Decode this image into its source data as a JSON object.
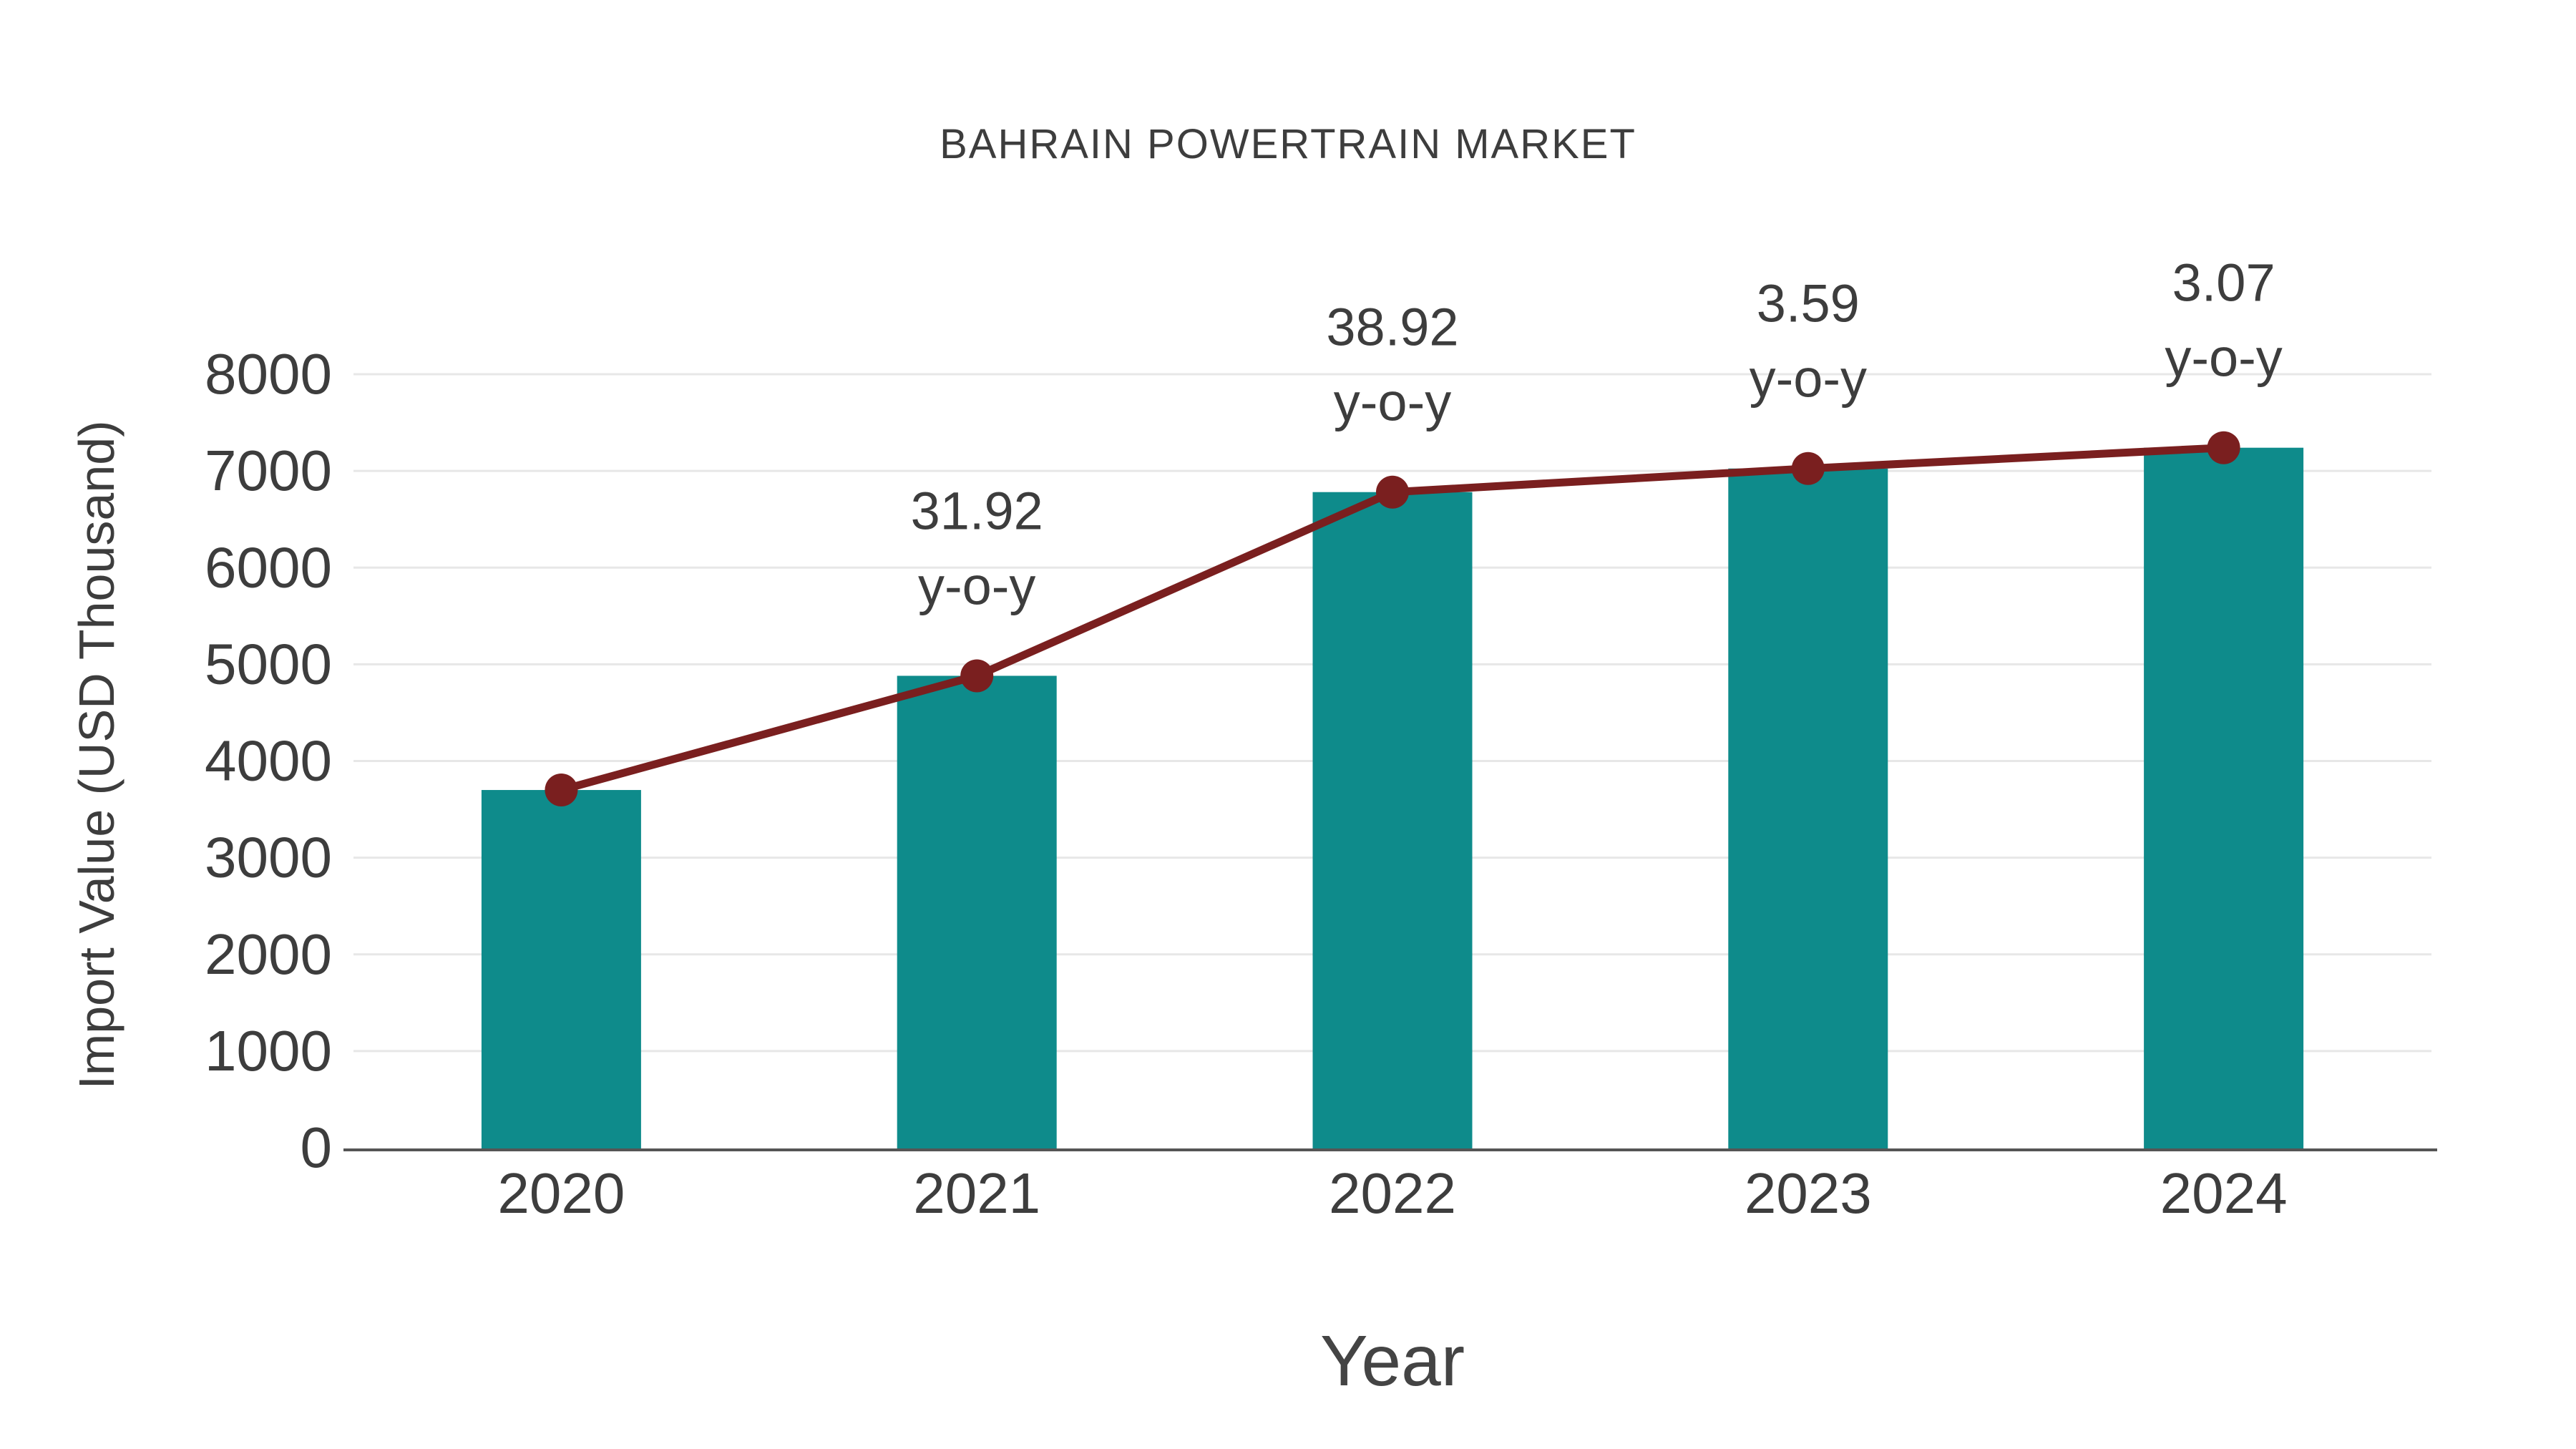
{
  "chart_data": {
    "type": "bar",
    "title": "BAHRAIN POWERTRAIN MARKET",
    "xlabel": "Year",
    "ylabel": "Import Value (USD Thousand)",
    "categories": [
      "2020",
      "2021",
      "2022",
      "2023",
      "2024"
    ],
    "series": [
      {
        "name": "Import Value",
        "kind": "bar",
        "color": "#0e8b8b",
        "values": [
          3700,
          4881,
          6781,
          7025,
          7240
        ]
      },
      {
        "name": "Y-o-Y Growth Marker Line",
        "kind": "line",
        "color": "#7a1f1f",
        "values": [
          3700,
          4881,
          6781,
          7025,
          7240
        ]
      }
    ],
    "annotations": [
      null,
      {
        "line1": "31.92",
        "line2": "y-o-y"
      },
      {
        "line1": "38.92",
        "line2": "y-o-y"
      },
      {
        "line1": "3.59",
        "line2": "y-o-y"
      },
      {
        "line1": "3.07",
        "line2": "y-o-y"
      }
    ],
    "ylim": [
      0,
      8000
    ],
    "ytick_step": 1000,
    "grid": true,
    "legend_position": "none",
    "colors": {
      "bar": "#0e8b8b",
      "line": "#7a1f1f",
      "grid": "#e7e7e7",
      "axis": "#555555",
      "text": "#3d3d3d"
    }
  }
}
